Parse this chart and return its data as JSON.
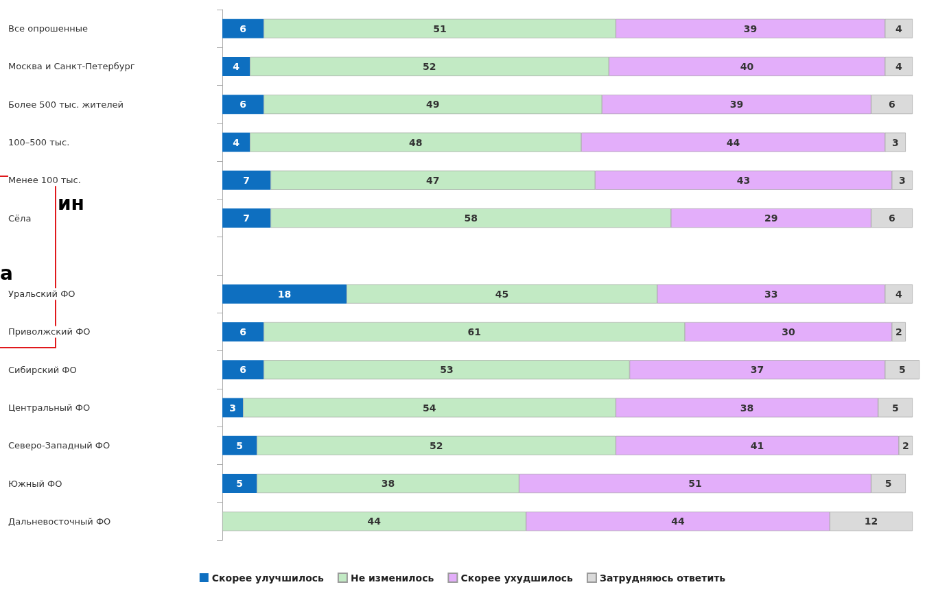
{
  "chart_data": {
    "type": "bar",
    "orientation": "horizontal",
    "stacked": true,
    "data_labels": true,
    "legend": "bottom",
    "grid": false,
    "categories": [
      "Все опрошенные",
      "Москва и Санкт-Петербург",
      "Более 500 тыс. жителей",
      "100–500 тыс.",
      "Менее 100 тыс.",
      "Сёла",
      null,
      "Уральский ФО",
      "Приволжский ФО",
      "Сибирский ФО",
      "Центральный ФО",
      "Северо-Западный ФО",
      "Южный ФО",
      "Дальневосточный ФО"
    ],
    "xlim": [
      0,
      101
    ],
    "series": [
      {
        "name": "Скорее улучшилось",
        "color": "#0e6fc0",
        "values": [
          6,
          4,
          6,
          4,
          7,
          7,
          null,
          18,
          6,
          6,
          3,
          5,
          5,
          null
        ]
      },
      {
        "name": "Не изменилось",
        "color": "#c2eac4",
        "values": [
          51,
          52,
          49,
          48,
          47,
          58,
          null,
          45,
          61,
          53,
          54,
          52,
          38,
          44
        ]
      },
      {
        "name": "Скорее ухудшилось",
        "color": "#e3aefa",
        "values": [
          39,
          40,
          39,
          44,
          43,
          29,
          null,
          33,
          30,
          37,
          38,
          41,
          51,
          44
        ]
      },
      {
        "name": "Затрудняюсь ответить",
        "color": "#dadada",
        "values": [
          4,
          4,
          6,
          3,
          3,
          6,
          null,
          4,
          2,
          5,
          5,
          2,
          5,
          12
        ]
      }
    ],
    "annotations": [
      "ин",
      "а"
    ]
  }
}
